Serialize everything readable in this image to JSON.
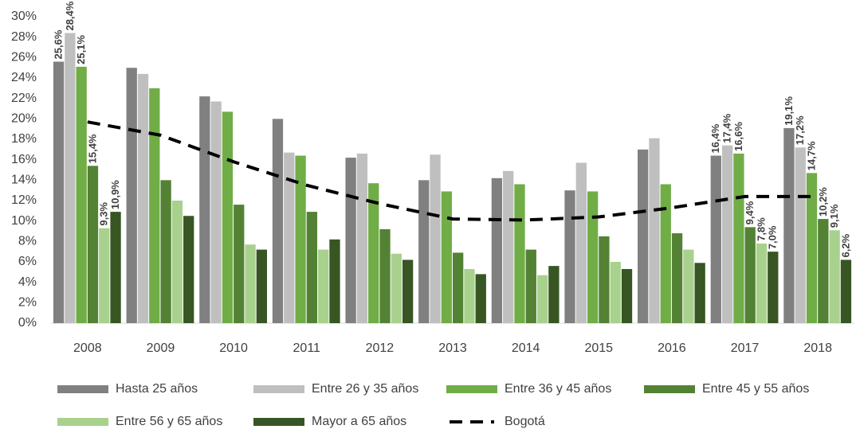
{
  "chart_data": {
    "type": "bar",
    "categories": [
      "2008",
      "2009",
      "2010",
      "2011",
      "2012",
      "2013",
      "2014",
      "2015",
      "2016",
      "2017",
      "2018"
    ],
    "ylim": [
      0,
      30
    ],
    "yticks": [
      {
        "value": 0,
        "label": "0%"
      },
      {
        "value": 2,
        "label": "2%"
      },
      {
        "value": 4,
        "label": "4%"
      },
      {
        "value": 6,
        "label": "6%"
      },
      {
        "value": 8,
        "label": "8%"
      },
      {
        "value": 10,
        "label": "10%"
      },
      {
        "value": 12,
        "label": "12%"
      },
      {
        "value": 14,
        "label": "14%"
      },
      {
        "value": 16,
        "label": "16%"
      },
      {
        "value": 18,
        "label": "18%"
      },
      {
        "value": 20,
        "label": "20%"
      },
      {
        "value": 22,
        "label": "22%"
      },
      {
        "value": 24,
        "label": "24%"
      },
      {
        "value": 26,
        "label": "26%"
      },
      {
        "value": 28,
        "label": "28%"
      },
      {
        "value": 30,
        "label": "30%"
      }
    ],
    "grid": false,
    "series": [
      {
        "name": "Hasta 25 años",
        "color": "#808080",
        "values": [
          25.6,
          25.0,
          22.2,
          20.0,
          16.2,
          14.0,
          14.2,
          13.0,
          17.0,
          16.4,
          19.1
        ],
        "value_labels": [
          "25,6%",
          null,
          null,
          null,
          null,
          null,
          null,
          null,
          null,
          "16,4%",
          "19,1%"
        ]
      },
      {
        "name": "Entre 26 y 35 años",
        "color": "#bfbfbf",
        "values": [
          28.4,
          24.4,
          21.7,
          16.7,
          16.6,
          16.5,
          14.9,
          15.7,
          18.1,
          17.4,
          17.2
        ],
        "value_labels": [
          "28,4%",
          null,
          null,
          null,
          null,
          null,
          null,
          null,
          null,
          "17,4%",
          "17,2%"
        ]
      },
      {
        "name": "Entre 36 y 45 años",
        "color": "#70ad47",
        "values": [
          25.1,
          23.0,
          20.7,
          16.4,
          13.7,
          12.9,
          13.6,
          12.9,
          13.6,
          16.6,
          14.7
        ],
        "value_labels": [
          "25,1%",
          null,
          null,
          null,
          null,
          null,
          null,
          null,
          null,
          "16,6%",
          "14,7%"
        ]
      },
      {
        "name": "Entre 45 y 55 años",
        "color": "#548235",
        "values": [
          15.4,
          14.0,
          11.6,
          10.9,
          9.2,
          6.9,
          7.2,
          8.5,
          8.8,
          9.4,
          10.2
        ],
        "value_labels": [
          "15,4%",
          null,
          null,
          null,
          null,
          null,
          null,
          null,
          null,
          "9,4%",
          "10,2%"
        ]
      },
      {
        "name": "Entre 56 y 65 años",
        "color": "#a9d18e",
        "values": [
          9.3,
          12.0,
          7.7,
          7.2,
          6.8,
          5.3,
          4.7,
          6.0,
          7.2,
          7.8,
          9.1
        ],
        "value_labels": [
          "9,3%",
          null,
          null,
          null,
          null,
          null,
          null,
          null,
          null,
          "7,8%",
          "9,1%"
        ]
      },
      {
        "name": "Mayor a 65 años",
        "color": "#375623",
        "values": [
          10.9,
          10.5,
          7.2,
          8.2,
          6.2,
          4.8,
          5.6,
          5.3,
          5.9,
          7.0,
          6.2
        ],
        "value_labels": [
          "10,9%",
          null,
          null,
          null,
          null,
          null,
          null,
          null,
          null,
          "7,0%",
          "6,2%"
        ]
      },
      {
        "name": "Bogotá",
        "type": "line",
        "color": "#000000",
        "values": [
          19.7,
          18.4,
          15.8,
          13.5,
          11.7,
          10.2,
          10.1,
          10.4,
          11.3,
          12.4,
          12.4
        ]
      }
    ]
  }
}
